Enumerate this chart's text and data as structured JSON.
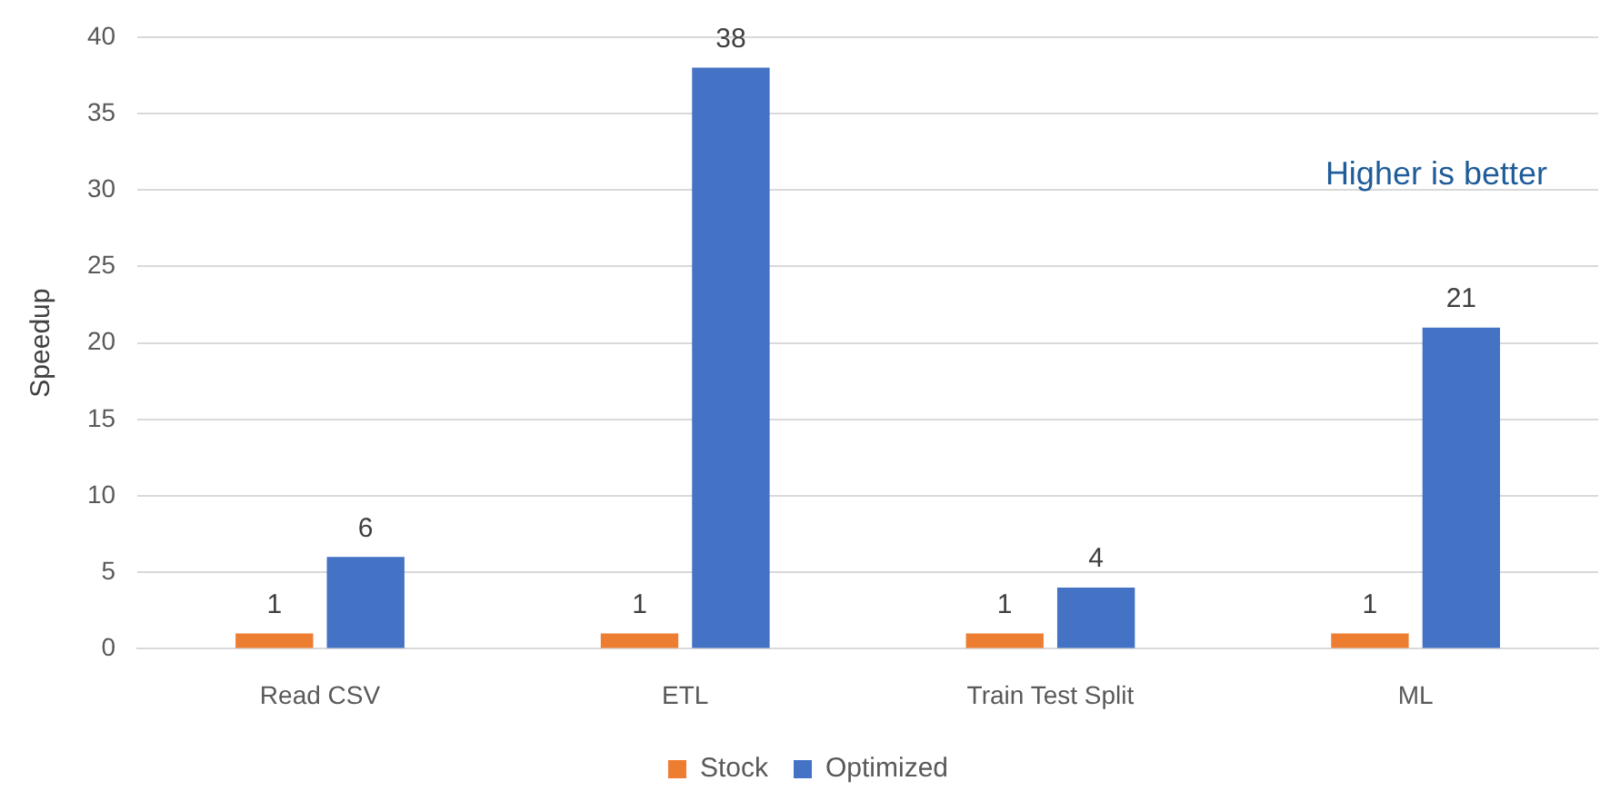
{
  "chart_data": {
    "type": "bar",
    "ylabel": "Speedup",
    "categories": [
      "Read CSV",
      "ETL",
      "Train Test Split",
      "ML"
    ],
    "series": [
      {
        "name": "Stock",
        "color": "#ed7d31",
        "values": [
          1,
          1,
          1,
          1
        ]
      },
      {
        "name": "Optimized",
        "color": "#4472c4",
        "values": [
          6,
          38,
          4,
          21
        ]
      }
    ],
    "ylim": [
      0,
      40
    ],
    "yticks": [
      0,
      5,
      10,
      15,
      20,
      25,
      30,
      35,
      40
    ],
    "grid": "y",
    "legend": "bottom",
    "data_labels": true,
    "annotations": [
      "Higher is better"
    ]
  }
}
